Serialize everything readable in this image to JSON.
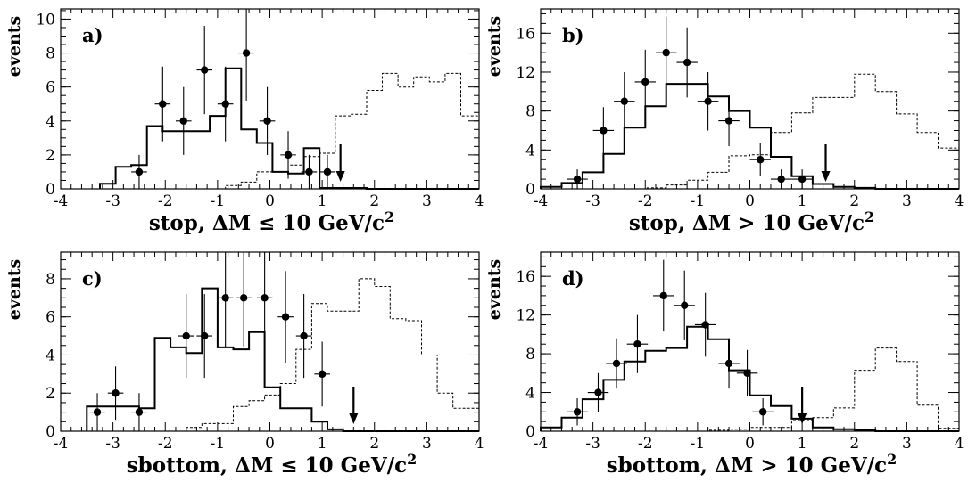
{
  "chart_data": [
    {
      "type": "histogram",
      "panel_label": "a)",
      "xlabel": "stop, ΔM ≤ 10 GeV/c",
      "xlabel_sup": "2",
      "ylabel": "events",
      "xlim": [
        -4,
        4
      ],
      "ylim": [
        0,
        10.6
      ],
      "xticks": [
        -4,
        -3,
        -2,
        -1,
        0,
        1,
        2,
        3,
        4
      ],
      "yticks": [
        0,
        2,
        4,
        6,
        8,
        10
      ],
      "bin_edges": [
        -3.25,
        -2.95,
        -2.65,
        -2.35,
        -2.05,
        -1.75,
        -1.45,
        -1.15,
        -0.85,
        -0.55,
        -0.25,
        0.05,
        0.35,
        0.65,
        0.95,
        1.25,
        1.55,
        1.85,
        2.15,
        2.45,
        2.75,
        3.05,
        3.35,
        3.65,
        4.0
      ],
      "mc_background": [
        0.3,
        1.3,
        1.4,
        3.7,
        3.4,
        3.4,
        3.4,
        4.3,
        7.1,
        3.5,
        2.7,
        1.0,
        0.9,
        2.4,
        0.05,
        0.05,
        0.05,
        0.0,
        0.0,
        0.0,
        0.0,
        0.0,
        0.0,
        0.0
      ],
      "signal": [
        0.0,
        0.0,
        0.0,
        0.0,
        0.0,
        0.0,
        0.0,
        0.0,
        0.2,
        0.4,
        1.0,
        1.0,
        1.4,
        1.9,
        2.1,
        4.3,
        4.4,
        5.8,
        6.8,
        6.0,
        6.6,
        6.3,
        6.8,
        4.3
      ],
      "data_points": [
        {
          "x": -2.5,
          "y": 1,
          "err": 1.0
        },
        {
          "x": -2.05,
          "y": 5,
          "err": 2.2
        },
        {
          "x": -1.65,
          "y": 4,
          "err": 2.0
        },
        {
          "x": -1.25,
          "y": 7,
          "err": 2.6
        },
        {
          "x": -0.85,
          "y": 5,
          "err": 2.2
        },
        {
          "x": -0.45,
          "y": 8,
          "err": 2.8
        },
        {
          "x": -0.05,
          "y": 4,
          "err": 2.0
        },
        {
          "x": 0.35,
          "y": 2,
          "err": 1.4
        },
        {
          "x": 0.75,
          "y": 1,
          "err": 1.0
        },
        {
          "x": 1.1,
          "y": 1,
          "err": 1.0
        }
      ],
      "cut_arrow_x": 1.35
    },
    {
      "type": "histogram",
      "panel_label": "b)",
      "xlabel": "stop, ΔM > 10 GeV/c",
      "xlabel_sup": "2",
      "ylabel": "events",
      "xlim": [
        -4,
        4
      ],
      "ylim": [
        0,
        18.5
      ],
      "xticks": [
        -4,
        -3,
        -2,
        -1,
        0,
        1,
        2,
        3,
        4
      ],
      "yticks": [
        0,
        4,
        8,
        12,
        16
      ],
      "bin_edges": [
        -4.0,
        -3.6,
        -3.2,
        -2.8,
        -2.4,
        -2.0,
        -1.6,
        -1.2,
        -0.8,
        -0.4,
        0.0,
        0.4,
        0.8,
        1.2,
        1.6,
        2.0,
        2.4,
        2.8,
        3.2,
        3.6,
        4.0
      ],
      "mc_background": [
        0.2,
        0.6,
        1.7,
        3.6,
        6.3,
        8.5,
        10.8,
        10.8,
        9.5,
        8.0,
        6.3,
        3.3,
        1.3,
        0.5,
        0.2,
        0.1,
        0.0,
        0.0,
        0.0,
        0.0
      ],
      "signal": [
        0.0,
        0.0,
        0.0,
        0.0,
        0.0,
        0.1,
        0.4,
        0.9,
        1.7,
        3.4,
        3.5,
        5.8,
        7.8,
        9.4,
        9.4,
        11.8,
        10.0,
        7.7,
        5.8,
        4.2
      ],
      "data_points": [
        {
          "x": -3.3,
          "y": 1,
          "err": 1.0
        },
        {
          "x": -2.8,
          "y": 6,
          "err": 2.4
        },
        {
          "x": -2.4,
          "y": 9,
          "err": 3.0
        },
        {
          "x": -2.0,
          "y": 11,
          "err": 3.3
        },
        {
          "x": -1.6,
          "y": 14,
          "err": 3.7
        },
        {
          "x": -1.2,
          "y": 13,
          "err": 3.6
        },
        {
          "x": -0.8,
          "y": 9,
          "err": 3.0
        },
        {
          "x": -0.4,
          "y": 7,
          "err": 2.6
        },
        {
          "x": 0.2,
          "y": 3,
          "err": 1.7
        },
        {
          "x": 0.6,
          "y": 1,
          "err": 1.0
        },
        {
          "x": 1.0,
          "y": 1,
          "err": 1.0
        }
      ],
      "cut_arrow_x": 1.45
    },
    {
      "type": "histogram",
      "panel_label": "c)",
      "xlabel": "sbottom, ΔM ≤ 10 GeV/c",
      "xlabel_sup": "2",
      "ylabel": "events",
      "xlim": [
        -4,
        4
      ],
      "ylim": [
        0,
        9.4
      ],
      "xticks": [
        -4,
        -3,
        -2,
        -1,
        0,
        1,
        2,
        3,
        4
      ],
      "yticks": [
        0,
        2,
        4,
        6,
        8
      ],
      "bin_edges": [
        -3.5,
        -3.1,
        -2.8,
        -2.5,
        -2.2,
        -1.9,
        -1.6,
        -1.3,
        -1.0,
        -0.7,
        -0.4,
        -0.1,
        0.2,
        0.5,
        0.8,
        1.1,
        1.4,
        1.7,
        2.0,
        2.3,
        2.6,
        2.9,
        3.2,
        3.5,
        4.0
      ],
      "mc_background": [
        1.3,
        1.3,
        1.3,
        1.2,
        4.9,
        4.4,
        4.1,
        7.5,
        4.4,
        4.3,
        5.2,
        2.3,
        1.2,
        1.2,
        0.5,
        0.1,
        0.0,
        0.0,
        0.0,
        0.0,
        0.0,
        0.0,
        0.0,
        0.0
      ],
      "signal": [
        0.0,
        0.0,
        0.0,
        0.0,
        0.0,
        0.0,
        0.2,
        0.4,
        0.4,
        1.3,
        1.6,
        1.9,
        2.5,
        4.3,
        6.7,
        6.3,
        6.3,
        8.0,
        7.6,
        5.9,
        5.8,
        4.0,
        2.0,
        1.2
      ],
      "data_points": [
        {
          "x": -3.3,
          "y": 1,
          "err": 1.0
        },
        {
          "x": -2.95,
          "y": 2,
          "err": 1.4
        },
        {
          "x": -2.5,
          "y": 1,
          "err": 1.0
        },
        {
          "x": -1.6,
          "y": 5,
          "err": 2.2
        },
        {
          "x": -1.25,
          "y": 5,
          "err": 2.2
        },
        {
          "x": -0.85,
          "y": 7,
          "err": 2.6
        },
        {
          "x": -0.5,
          "y": 7,
          "err": 2.6
        },
        {
          "x": -0.1,
          "y": 7,
          "err": 2.6
        },
        {
          "x": 0.3,
          "y": 6,
          "err": 2.4
        },
        {
          "x": 0.65,
          "y": 5,
          "err": 2.2
        },
        {
          "x": 1.0,
          "y": 3,
          "err": 1.7
        }
      ],
      "cut_arrow_x": 1.6
    },
    {
      "type": "histogram",
      "panel_label": "d)",
      "xlabel": "sbottom, ΔM > 10 GeV/c",
      "xlabel_sup": "2",
      "ylabel": "events",
      "xlim": [
        -4,
        4
      ],
      "ylim": [
        0,
        18.5
      ],
      "xticks": [
        -4,
        -3,
        -2,
        -1,
        0,
        1,
        2,
        3,
        4
      ],
      "yticks": [
        0,
        4,
        8,
        12,
        16
      ],
      "bin_edges": [
        -4.0,
        -3.6,
        -3.2,
        -2.8,
        -2.4,
        -2.0,
        -1.6,
        -1.2,
        -0.8,
        -0.4,
        0.0,
        0.4,
        0.8,
        1.2,
        1.6,
        2.0,
        2.4,
        2.8,
        3.2,
        3.6,
        4.0
      ],
      "mc_background": [
        0.4,
        1.4,
        3.3,
        5.3,
        7.2,
        8.3,
        8.6,
        10.8,
        9.5,
        6.3,
        3.7,
        2.6,
        1.3,
        0.4,
        0.2,
        0.1,
        0.0,
        0.0,
        0.0,
        0.0
      ],
      "signal": [
        0.0,
        0.0,
        0.0,
        0.0,
        0.0,
        0.0,
        0.0,
        0.0,
        0.1,
        0.2,
        0.4,
        0.4,
        1.1,
        1.4,
        2.4,
        6.3,
        8.6,
        7.2,
        2.7,
        0.3
      ],
      "data_points": [
        {
          "x": -3.3,
          "y": 2,
          "err": 1.4
        },
        {
          "x": -2.9,
          "y": 4,
          "err": 2.0
        },
        {
          "x": -2.55,
          "y": 7,
          "err": 2.6
        },
        {
          "x": -2.15,
          "y": 9,
          "err": 3.0
        },
        {
          "x": -1.65,
          "y": 14,
          "err": 3.7
        },
        {
          "x": -1.25,
          "y": 13,
          "err": 3.6
        },
        {
          "x": -0.85,
          "y": 11,
          "err": 3.3
        },
        {
          "x": -0.4,
          "y": 7,
          "err": 2.6
        },
        {
          "x": -0.05,
          "y": 6,
          "err": 2.4
        },
        {
          "x": 0.25,
          "y": 2,
          "err": 1.4
        }
      ],
      "cut_arrow_x": 1.0
    }
  ]
}
